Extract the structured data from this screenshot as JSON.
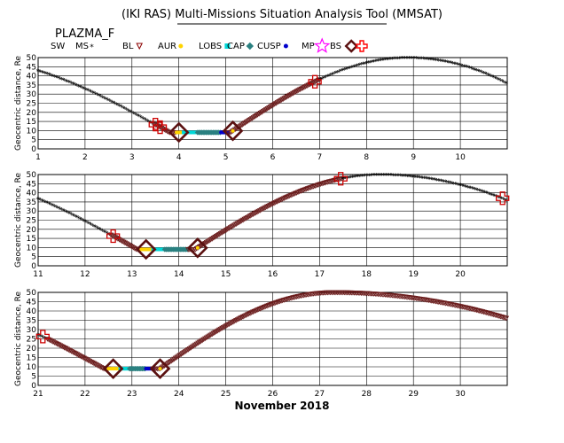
{
  "title": "(IKI RAS) Multi-Missions Situation Analysis Tool (MMSAT)",
  "subtitle": "PLAZMA_F",
  "xlabel": "November 2018",
  "legend": [
    {
      "label": "SW",
      "symbol": "none",
      "color": "#000000"
    },
    {
      "label": "MS",
      "symbol": "star-small",
      "color": "#ff0000"
    },
    {
      "label": "BL",
      "symbol": "triangle-down",
      "color": "#8b0000"
    },
    {
      "label": "AUR",
      "symbol": "dot",
      "color": "#ffd400"
    },
    {
      "label": "LOBS",
      "symbol": "square",
      "color": "#00d8d8"
    },
    {
      "label": "CAP",
      "symbol": "square-rot",
      "color": "#2a8080"
    },
    {
      "label": "CUSP",
      "symbol": "dot",
      "color": "#0000cc"
    },
    {
      "label": "MP",
      "symbol": "star-big",
      "color": "#ff00ff"
    },
    {
      "label": "BS",
      "symbol": "diamond",
      "color": "#5a1010"
    },
    {
      "label": "",
      "symbol": "plus-box",
      "color": "#ff0000"
    }
  ],
  "colors": {
    "magnetosheath": "#ff0000",
    "boundary_layer": "#6b1c1c",
    "lobe": "#00d8d8",
    "cap": "#2a8080",
    "cusp": "#0000cc",
    "aurora": "#ffd400"
  },
  "chart_data": [
    {
      "type": "line",
      "panel": "1-11",
      "ylabel": "Geocentric distance, Re",
      "xlim": [
        1,
        11
      ],
      "ylim": [
        0,
        50
      ],
      "xticks": [
        1,
        2,
        3,
        4,
        5,
        6,
        7,
        8,
        9,
        10
      ],
      "yticks": [
        0,
        5,
        10,
        15,
        20,
        25,
        30,
        35,
        40,
        45,
        50
      ],
      "grid": true,
      "apogee": 8.9,
      "perigee_in": 3.8,
      "perigee": 4.4,
      "perigee_out": 5.1,
      "segments": [
        {
          "x0": 1.0,
          "x1": 3.45,
          "region": "magnetosheath"
        },
        {
          "x0": 3.45,
          "x1": 3.95,
          "region": "boundary_layer"
        },
        {
          "x0": 3.95,
          "x1": 4.1,
          "region": "aurora"
        },
        {
          "x0": 4.1,
          "x1": 4.4,
          "region": "lobe"
        },
        {
          "x0": 4.4,
          "x1": 4.9,
          "region": "cap"
        },
        {
          "x0": 4.9,
          "x1": 5.05,
          "region": "cusp"
        },
        {
          "x0": 5.05,
          "x1": 7.0,
          "region": "boundary_layer"
        },
        {
          "x0": 7.0,
          "x1": 11.0,
          "region": "magnetosheath"
        }
      ],
      "crossings": [
        {
          "type": "bs",
          "x": 3.5
        },
        {
          "type": "bs",
          "x": 3.6
        },
        {
          "type": "mp",
          "x": 4.0
        },
        {
          "type": "mp",
          "x": 5.15
        },
        {
          "type": "bs",
          "x": 6.9
        }
      ]
    },
    {
      "type": "line",
      "panel": "11-21",
      "ylabel": "Geocentric distance, Re",
      "xlim": [
        11,
        21
      ],
      "ylim": [
        0,
        50
      ],
      "xticks": [
        11,
        12,
        13,
        14,
        15,
        16,
        17,
        18,
        19,
        20
      ],
      "yticks": [
        0,
        5,
        10,
        15,
        20,
        25,
        30,
        35,
        40,
        45,
        50
      ],
      "grid": true,
      "apogee": 18.3,
      "perigee_in": 13.1,
      "perigee": 13.65,
      "perigee_out": 14.35,
      "segments": [
        {
          "x0": 11.0,
          "x1": 12.55,
          "region": "magnetosheath"
        },
        {
          "x0": 12.55,
          "x1": 13.2,
          "region": "boundary_layer"
        },
        {
          "x0": 13.2,
          "x1": 13.45,
          "region": "aurora"
        },
        {
          "x0": 13.45,
          "x1": 13.7,
          "region": "lobe"
        },
        {
          "x0": 13.7,
          "x1": 14.2,
          "region": "cap"
        },
        {
          "x0": 14.2,
          "x1": 17.5,
          "region": "boundary_layer"
        },
        {
          "x0": 17.5,
          "x1": 21.0,
          "region": "magnetosheath"
        }
      ],
      "crossings": [
        {
          "type": "bs",
          "x": 12.6
        },
        {
          "type": "mp",
          "x": 13.3
        },
        {
          "type": "mp",
          "x": 14.4
        },
        {
          "type": "bs",
          "x": 17.45
        },
        {
          "type": "bs",
          "x": 20.9
        }
      ]
    },
    {
      "type": "line",
      "panel": "21-31",
      "ylabel": "Geocentric distance, Re",
      "xlim": [
        21,
        31
      ],
      "ylim": [
        0,
        50
      ],
      "xticks": [
        21,
        22,
        23,
        24,
        25,
        26,
        27,
        28,
        29,
        30
      ],
      "yticks": [
        0,
        5,
        10,
        15,
        20,
        25,
        30,
        35,
        40,
        45,
        50
      ],
      "grid": true,
      "apogee": 27.3,
      "perigee_in": 22.4,
      "perigee": 22.9,
      "perigee_out": 23.6,
      "segments": [
        {
          "x0": 21.0,
          "x1": 21.2,
          "region": "magnetosheath"
        },
        {
          "x0": 21.2,
          "x1": 22.5,
          "region": "boundary_layer"
        },
        {
          "x0": 22.5,
          "x1": 22.75,
          "region": "aurora"
        },
        {
          "x0": 22.75,
          "x1": 22.95,
          "region": "lobe"
        },
        {
          "x0": 22.95,
          "x1": 23.3,
          "region": "cap"
        },
        {
          "x0": 23.3,
          "x1": 23.45,
          "region": "cusp"
        },
        {
          "x0": 23.45,
          "x1": 31.0,
          "region": "boundary_layer"
        }
      ],
      "crossings": [
        {
          "type": "bs",
          "x": 21.1
        },
        {
          "type": "mp",
          "x": 22.6
        },
        {
          "type": "mp",
          "x": 23.6
        }
      ]
    }
  ]
}
